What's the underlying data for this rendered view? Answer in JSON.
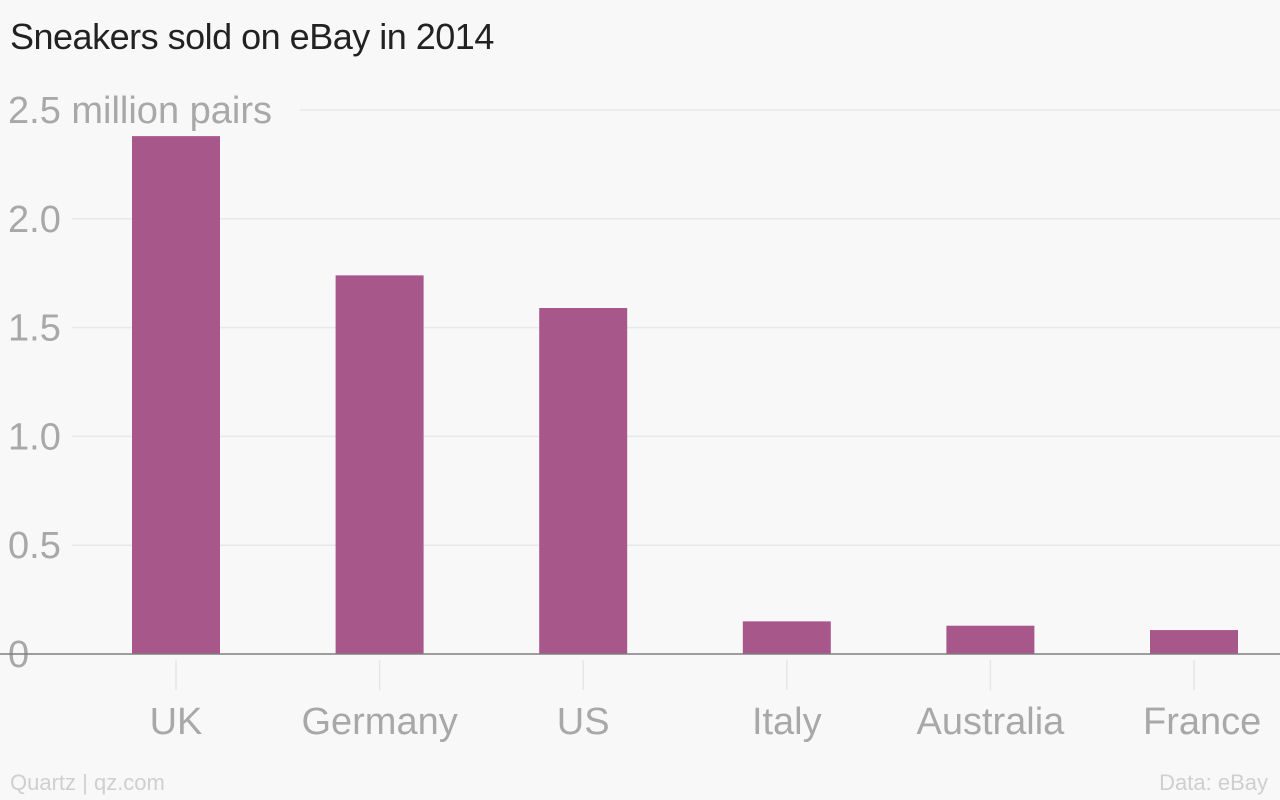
{
  "chart_data": {
    "type": "bar",
    "title": "Sneakers sold on eBay in 2014",
    "categories": [
      "UK",
      "Germany",
      "US",
      "Italy",
      "Australia",
      "France"
    ],
    "values": [
      2.38,
      1.74,
      1.59,
      0.15,
      0.13,
      0.11
    ],
    "ylim": [
      0,
      2.5
    ],
    "y_ticks": [
      0,
      0.5,
      1.0,
      1.5,
      2.0,
      2.5
    ],
    "y_tick_labels": [
      "0",
      "0.5",
      "1.0",
      "1.5",
      "2.0",
      "2.5 million pairs"
    ],
    "xlabel": "",
    "ylabel": "",
    "grid": true,
    "legend": "none",
    "bar_color": "#a8578a"
  },
  "footer": {
    "source_left": "Quartz | qz.com",
    "source_right": "Data: eBay"
  }
}
